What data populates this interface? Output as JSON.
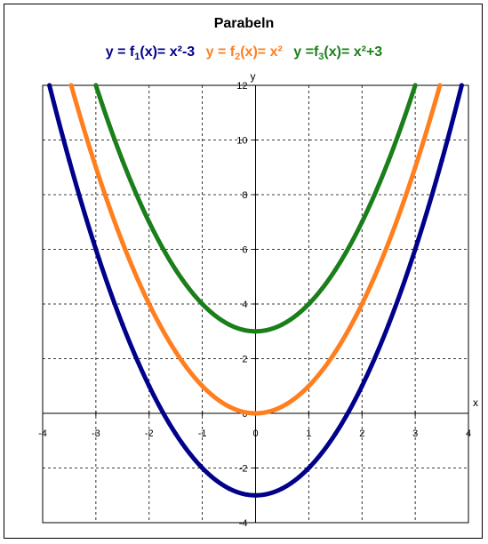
{
  "chart_data": {
    "type": "line",
    "title": "Parabeln",
    "xlabel": "x",
    "ylabel": "y",
    "xlim": [
      -4,
      4
    ],
    "ylim": [
      -4,
      12
    ],
    "x_ticks": [
      "-4",
      "-3",
      "-2",
      "-1",
      "0",
      "1",
      "2",
      "3",
      "4"
    ],
    "y_ticks": [
      "-4",
      "-2",
      "0",
      "2",
      "4",
      "6",
      "8",
      "10",
      "12"
    ],
    "grid": true,
    "series": [
      {
        "name_parts": [
          "y = f",
          "1",
          "(x)= x²-3"
        ],
        "color": "#00008b",
        "formula": "x^2-3",
        "points": [
          [
            -3.873,
            12
          ],
          [
            -3.5,
            9.25
          ],
          [
            -3,
            6
          ],
          [
            -2.5,
            3.25
          ],
          [
            -2,
            1
          ],
          [
            -1.5,
            -0.75
          ],
          [
            -1,
            -2
          ],
          [
            -0.5,
            -2.75
          ],
          [
            0,
            -3
          ],
          [
            0.5,
            -2.75
          ],
          [
            1,
            -2
          ],
          [
            1.5,
            -0.75
          ],
          [
            2,
            1
          ],
          [
            2.5,
            3.25
          ],
          [
            3,
            6
          ],
          [
            3.5,
            9.25
          ],
          [
            3.873,
            12
          ]
        ]
      },
      {
        "name_parts": [
          "y = f",
          "2",
          "(x)= x²"
        ],
        "color": "#ff7f1f",
        "formula": "x^2",
        "points": [
          [
            -3.464,
            12
          ],
          [
            -3,
            9
          ],
          [
            -2.5,
            6.25
          ],
          [
            -2,
            4
          ],
          [
            -1.5,
            2.25
          ],
          [
            -1,
            1
          ],
          [
            -0.5,
            0.25
          ],
          [
            0,
            0
          ],
          [
            0.5,
            0.25
          ],
          [
            1,
            1
          ],
          [
            1.5,
            2.25
          ],
          [
            2,
            4
          ],
          [
            2.5,
            6.25
          ],
          [
            3,
            9
          ],
          [
            3.464,
            12
          ]
        ]
      },
      {
        "name_parts": [
          "y =f",
          "3",
          "(x)= x²+3"
        ],
        "color": "#1a7f1a",
        "formula": "x^2+3",
        "points": [
          [
            -3,
            12
          ],
          [
            -2.5,
            9.25
          ],
          [
            -2,
            7
          ],
          [
            -1.5,
            5.25
          ],
          [
            -1,
            4
          ],
          [
            -0.5,
            3.25
          ],
          [
            0,
            3
          ],
          [
            0.5,
            3.25
          ],
          [
            1,
            4
          ],
          [
            1.5,
            5.25
          ],
          [
            2,
            7
          ],
          [
            2.5,
            9.25
          ],
          [
            3,
            12
          ]
        ]
      }
    ]
  }
}
